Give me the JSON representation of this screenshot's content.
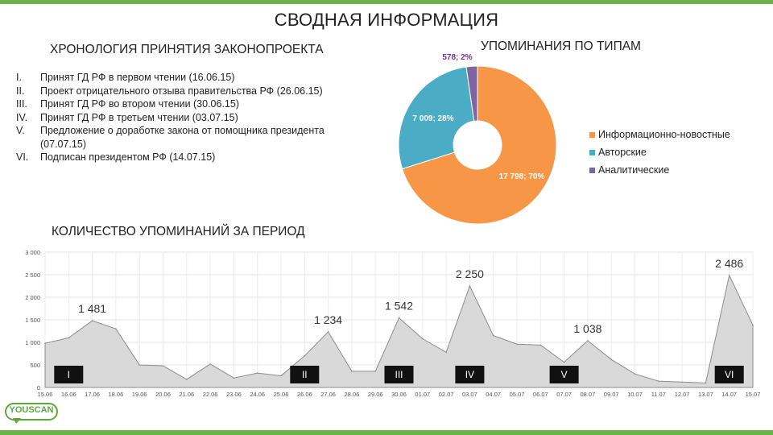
{
  "page": {
    "title": "СВОДНАЯ ИНФОРМАЦИЯ"
  },
  "timeline": {
    "title": "ХРОНОЛОГИЯ ПРИНЯТИЯ ЗАКОНОПРОЕКТА",
    "items": [
      {
        "num": "I.",
        "text": "Принят ГД РФ в первом чтении (16.06.15)"
      },
      {
        "num": "II.",
        "text": "Проект отрицательного отзыва правительства РФ (26.06.15)"
      },
      {
        "num": "III.",
        "text": "Принят ГД РФ во втором чтении (30.06.15)"
      },
      {
        "num": "IV.",
        "text": "Принят ГД РФ в третьем чтении (03.07.15)"
      },
      {
        "num": "V.",
        "text": "Предложение о доработке закона от помощника президента (07.07.15)"
      },
      {
        "num": "VI.",
        "text": "Подписан президентом РФ (14.07.15)"
      }
    ]
  },
  "types": {
    "title": "УПОМИНАНИЯ ПО ТИПАМ",
    "legend": [
      {
        "label": "Информационно-новостные",
        "color": "#f79646"
      },
      {
        "label": "Авторские",
        "color": "#4bacc6"
      },
      {
        "label": "Аналитические",
        "color": "#8064a2"
      }
    ]
  },
  "period": {
    "title": "КОЛИЧЕСТВО УПОМИНАНИЙ ЗА ПЕРИОД"
  },
  "logo": {
    "text": "YOUSCAN"
  },
  "chart_data": [
    {
      "type": "pie",
      "title": "УПОМИНАНИЯ ПО ТИПАМ",
      "donut": true,
      "slices": [
        {
          "name": "Информационно-новостные",
          "value": 17798,
          "label": "17 798; 70%",
          "color": "#f79646"
        },
        {
          "name": "Авторские",
          "value": 7009,
          "label": "7 009; 28%",
          "color": "#4bacc6"
        },
        {
          "name": "Аналитические",
          "value": 578,
          "label": "578; 2%",
          "color": "#8064a2"
        }
      ],
      "legend": "right"
    },
    {
      "type": "area",
      "title": "КОЛИЧЕСТВО УПОМИНАНИЙ ЗА ПЕРИОД",
      "categories": [
        "15.06",
        "16.06",
        "17.06",
        "18.06",
        "19.06",
        "20.06",
        "21.06",
        "22.06",
        "23.06",
        "24.06",
        "25.06",
        "26.06",
        "27.06",
        "28.06",
        "29.06",
        "30.06",
        "01.07",
        "02.07",
        "03.07",
        "04.07",
        "05.07",
        "06.07",
        "07.07",
        "08.07",
        "09.07",
        "10.07",
        "11.07",
        "12.07",
        "13.07",
        "14.07",
        "15.07"
      ],
      "values": [
        980,
        1100,
        1481,
        1300,
        500,
        480,
        180,
        520,
        210,
        320,
        260,
        700,
        1234,
        360,
        360,
        1542,
        1080,
        780,
        2250,
        1150,
        960,
        940,
        560,
        1038,
        620,
        300,
        140,
        120,
        100,
        2486,
        1380
      ],
      "ylim": [
        0,
        3000
      ],
      "yticks": [
        "0",
        "500",
        "1 000",
        "1 500",
        "2 000",
        "2 500",
        "3 000"
      ],
      "grid": true,
      "color": "#d9d9d9",
      "data_labels": [
        {
          "index": 2,
          "text": "1 481"
        },
        {
          "index": 12,
          "text": "1 234"
        },
        {
          "index": 15,
          "text": "1 542"
        },
        {
          "index": 18,
          "text": "2 250"
        },
        {
          "index": 23,
          "text": "1 038"
        },
        {
          "index": 29,
          "text": "2 486"
        }
      ],
      "markers": [
        {
          "index": 1,
          "text": "I"
        },
        {
          "index": 11,
          "text": "II"
        },
        {
          "index": 15,
          "text": "III"
        },
        {
          "index": 18,
          "text": "IV"
        },
        {
          "index": 22,
          "text": "V"
        },
        {
          "index": 29,
          "text": "VI"
        }
      ]
    }
  ]
}
